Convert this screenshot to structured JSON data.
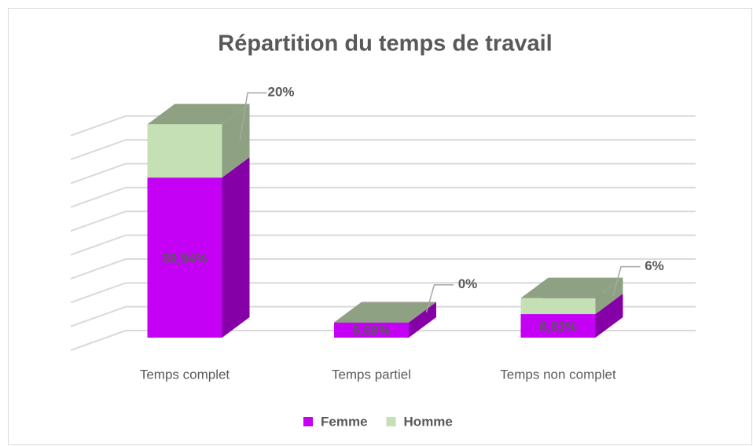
{
  "chart_data": {
    "type": "bar",
    "stacked": true,
    "three_d": true,
    "title": "Répartition du temps de travail",
    "categories": [
      "Temps complet",
      "Temps partiel",
      "Temps non complet"
    ],
    "series": [
      {
        "name": "Femme",
        "color": "#c400f5",
        "values": [
          59.94,
          5.68,
          8.81
        ],
        "value_labels": [
          "59,94%",
          "5,68%",
          "8,81%"
        ]
      },
      {
        "name": "Homme",
        "color": "#c5e0b4",
        "values": [
          20,
          0,
          6
        ],
        "value_labels": [
          "20%",
          "0%",
          "6%"
        ]
      }
    ],
    "ylim": [
      0,
      90
    ],
    "yticks": [
      0,
      10,
      20,
      30,
      40,
      50,
      60,
      70,
      80,
      90
    ],
    "grid": true,
    "legend": "bottom"
  }
}
